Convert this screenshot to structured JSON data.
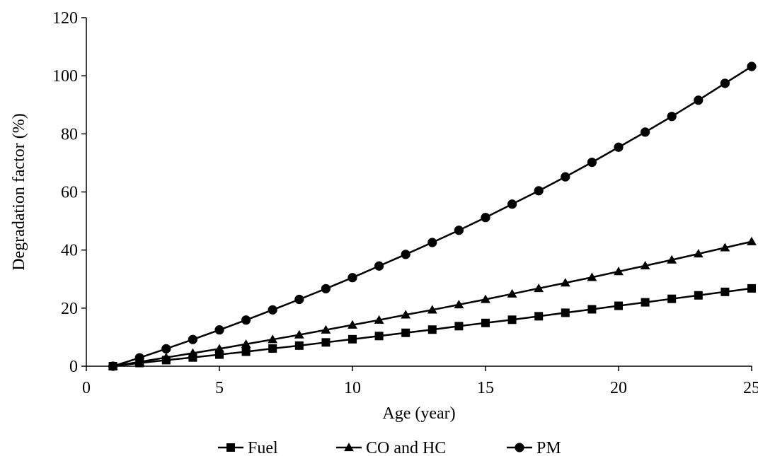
{
  "chart_data": {
    "type": "line",
    "title": "",
    "xlabel": "Age (year)",
    "ylabel": "Degradation factor (%)",
    "xlim": [
      0,
      25
    ],
    "ylim": [
      0,
      120
    ],
    "xticks": [
      0,
      5,
      10,
      15,
      20,
      25
    ],
    "yticks": [
      0,
      20,
      40,
      60,
      80,
      100,
      120
    ],
    "grid": false,
    "legend_position": "bottom",
    "x": [
      1,
      2,
      3,
      4,
      5,
      6,
      7,
      8,
      9,
      10,
      11,
      12,
      13,
      14,
      15,
      16,
      17,
      18,
      19,
      20,
      21,
      22,
      23,
      24,
      25
    ],
    "series": [
      {
        "name": "Fuel",
        "marker": "square",
        "color": "#000000",
        "values": [
          0,
          1.1,
          2.1,
          3.0,
          4.0,
          5.0,
          6.1,
          7.1,
          8.2,
          9.3,
          10.4,
          11.5,
          12.6,
          13.8,
          14.9,
          16.0,
          17.2,
          18.4,
          19.6,
          20.8,
          22.0,
          23.2,
          24.4,
          25.6,
          26.8
        ]
      },
      {
        "name": "CO and HC",
        "marker": "triangle",
        "color": "#000000",
        "values": [
          0,
          1.5,
          3.0,
          4.5,
          6.0,
          7.6,
          9.2,
          10.8,
          12.5,
          14.2,
          15.9,
          17.7,
          19.4,
          21.2,
          23.0,
          24.9,
          26.8,
          28.7,
          30.6,
          32.6,
          34.6,
          36.6,
          38.7,
          40.8,
          42.9
        ]
      },
      {
        "name": "PM",
        "marker": "circle",
        "color": "#000000",
        "values": [
          0,
          2.9,
          6.0,
          9.2,
          12.5,
          15.9,
          19.4,
          23.0,
          26.7,
          30.5,
          34.5,
          38.5,
          42.6,
          46.8,
          51.2,
          55.8,
          60.4,
          65.2,
          70.2,
          75.4,
          80.6,
          86.0,
          91.6,
          97.4,
          103.2
        ]
      }
    ]
  }
}
